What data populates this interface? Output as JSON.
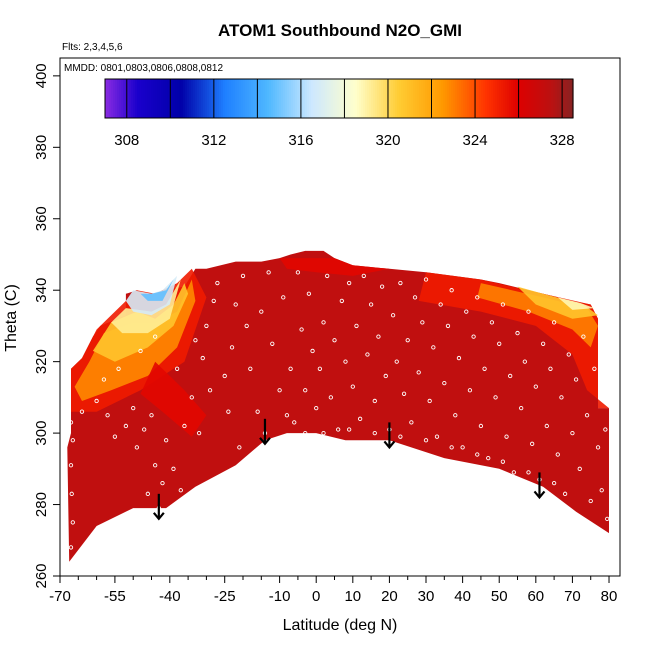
{
  "chart_data": {
    "type": "heatmap",
    "title": "ATOM1 Southbound N2O_GMI",
    "flights_note": "Flts: 2,3,4,5,6",
    "dates_note": "MMDD: 0801,0803,0806,0808,0812",
    "xlabel": "Latitude (deg N)",
    "ylabel": "Theta (C)",
    "xlim": [
      -70,
      83
    ],
    "ylim": [
      260,
      405
    ],
    "x_ticks": [
      -70,
      -55,
      -40,
      -25,
      -10,
      0,
      10,
      20,
      30,
      40,
      50,
      60,
      70,
      80
    ],
    "x_tick_labels": [
      "-70",
      "-55",
      "-40",
      "-25",
      "-10",
      "0",
      "10",
      "20",
      "30",
      "40",
      "50",
      "60",
      "70",
      "80"
    ],
    "x_minor_ticks": [
      -65,
      -60,
      -50,
      -45,
      -35,
      -30,
      -20,
      -15,
      -5,
      5,
      15,
      25,
      35,
      45,
      55,
      65,
      75
    ],
    "y_ticks": [
      260,
      280,
      300,
      320,
      340,
      360,
      380,
      400
    ],
    "y_tick_labels": [
      "260",
      "280",
      "300",
      "320",
      "340",
      "360",
      "380",
      "400"
    ],
    "colorbar": {
      "range": [
        307,
        328.5
      ],
      "ticks": [
        308,
        312,
        316,
        320,
        324,
        328
      ],
      "tick_labels": [
        "308",
        "312",
        "316",
        "320",
        "324",
        "328"
      ],
      "divisions": [
        308,
        310,
        312,
        314,
        316,
        318,
        320,
        322,
        324,
        326,
        328
      ],
      "stops": [
        {
          "value": 307.0,
          "color": "#8a2be2"
        },
        {
          "value": 308.5,
          "color": "#1a00cc"
        },
        {
          "value": 310.5,
          "color": "#0000a8"
        },
        {
          "value": 312.5,
          "color": "#1e7fff"
        },
        {
          "value": 314.5,
          "color": "#4fb8ff"
        },
        {
          "value": 316.5,
          "color": "#cde8ff"
        },
        {
          "value": 318.5,
          "color": "#ffffcc"
        },
        {
          "value": 320.5,
          "color": "#ffcc33"
        },
        {
          "value": 322.5,
          "color": "#ff9900"
        },
        {
          "value": 324.5,
          "color": "#ff3300"
        },
        {
          "value": 326.0,
          "color": "#dd0000"
        },
        {
          "value": 327.5,
          "color": "#bb1111"
        },
        {
          "value": 328.5,
          "color": "#882222"
        }
      ]
    },
    "background_value": 327.3,
    "field_boundary": [
      [
        -67.5,
        264
      ],
      [
        -60,
        274
      ],
      [
        -50,
        279
      ],
      [
        -41,
        279
      ],
      [
        -37,
        282
      ],
      [
        -33,
        285
      ],
      [
        -22,
        291
      ],
      [
        -14,
        298
      ],
      [
        -8,
        300
      ],
      [
        0,
        300
      ],
      [
        8,
        298
      ],
      [
        20,
        298
      ],
      [
        35,
        293
      ],
      [
        50,
        290
      ],
      [
        62,
        285
      ],
      [
        71,
        278
      ],
      [
        80,
        272
      ],
      [
        80,
        307
      ],
      [
        77,
        307
      ],
      [
        77,
        332
      ],
      [
        75,
        336
      ],
      [
        70,
        337
      ],
      [
        62,
        339
      ],
      [
        50,
        342
      ],
      [
        45,
        343
      ],
      [
        30,
        345
      ],
      [
        20,
        346
      ],
      [
        10,
        347
      ],
      [
        5,
        349
      ],
      [
        2,
        351
      ],
      [
        -3,
        351
      ],
      [
        -7,
        350
      ],
      [
        -10,
        349
      ],
      [
        -15,
        348
      ],
      [
        -22,
        348
      ],
      [
        -30,
        346
      ],
      [
        -33,
        346
      ],
      [
        -36,
        341
      ],
      [
        -42,
        340
      ],
      [
        -46,
        338
      ],
      [
        -49,
        340
      ],
      [
        -52,
        339
      ],
      [
        -52,
        333
      ],
      [
        -59,
        330
      ],
      [
        -61,
        327
      ],
      [
        -64,
        321
      ],
      [
        -67,
        318
      ],
      [
        -67,
        300
      ],
      [
        -68,
        296
      ]
    ],
    "regions": [
      {
        "value": 325.2,
        "polygon": [
          [
            -67,
            318
          ],
          [
            -64,
            321
          ],
          [
            -60,
            329
          ],
          [
            -55,
            334
          ],
          [
            -49,
            340
          ],
          [
            -44,
            339
          ],
          [
            -38,
            342
          ],
          [
            -34,
            346
          ],
          [
            -30,
            338
          ],
          [
            -36,
            320
          ],
          [
            -48,
            312
          ],
          [
            -60,
            306
          ],
          [
            -67,
            306
          ]
        ]
      },
      {
        "value": 322.8,
        "polygon": [
          [
            -66,
            313
          ],
          [
            -62,
            320
          ],
          [
            -58,
            328
          ],
          [
            -50,
            331
          ],
          [
            -44,
            331
          ],
          [
            -38,
            334
          ],
          [
            -34,
            343
          ],
          [
            -33,
            337
          ],
          [
            -38,
            324
          ],
          [
            -46,
            316
          ],
          [
            -56,
            312
          ],
          [
            -64,
            309
          ]
        ]
      },
      {
        "value": 320.8,
        "polygon": [
          [
            -61,
            323
          ],
          [
            -56,
            331
          ],
          [
            -49,
            334
          ],
          [
            -44,
            332
          ],
          [
            -39,
            336
          ],
          [
            -36,
            342
          ],
          [
            -35,
            339
          ],
          [
            -39,
            330
          ],
          [
            -46,
            324
          ],
          [
            -55,
            320
          ]
        ]
      },
      {
        "value": 319.2,
        "polygon": [
          [
            -56,
            331
          ],
          [
            -52,
            335
          ],
          [
            -45,
            334
          ],
          [
            -41,
            336
          ],
          [
            -37,
            343
          ],
          [
            -40,
            332
          ],
          [
            -46,
            328
          ],
          [
            -53,
            328
          ]
        ]
      },
      {
        "value": 316.8,
        "polygon": [
          [
            -52,
            337
          ],
          [
            -50,
            340
          ],
          [
            -45,
            339
          ],
          [
            -42,
            340
          ],
          [
            -38,
            344
          ],
          [
            -40,
            336
          ],
          [
            -45,
            333
          ],
          [
            -50,
            334
          ]
        ]
      },
      {
        "value": 314.8,
        "polygon": [
          [
            -48,
            339
          ],
          [
            -45,
            339
          ],
          [
            -41,
            340
          ],
          [
            -39,
            343
          ],
          [
            -42,
            337
          ],
          [
            -46,
            337
          ]
        ]
      },
      {
        "value": 325.2,
        "polygon": [
          [
            80,
            307
          ],
          [
            77,
            307
          ],
          [
            77,
            332
          ],
          [
            75,
            336
          ],
          [
            62,
            339
          ],
          [
            45,
            343
          ],
          [
            30,
            345
          ],
          [
            28,
            337
          ],
          [
            45,
            334
          ],
          [
            60,
            330
          ],
          [
            70,
            322
          ],
          [
            74,
            312
          ]
        ]
      },
      {
        "value": 323.0,
        "polygon": [
          [
            77,
            330
          ],
          [
            74,
            335
          ],
          [
            62,
            338
          ],
          [
            45,
            342
          ],
          [
            44,
            338
          ],
          [
            58,
            334
          ],
          [
            70,
            329
          ],
          [
            75,
            324
          ]
        ]
      },
      {
        "value": 320.8,
        "polygon": [
          [
            77,
            333
          ],
          [
            73,
            336
          ],
          [
            62,
            339
          ],
          [
            55,
            341
          ],
          [
            60,
            336
          ],
          [
            70,
            332
          ]
        ]
      },
      {
        "value": 318.8,
        "polygon": [
          [
            76,
            335
          ],
          [
            72,
            336.5
          ],
          [
            66,
            338
          ],
          [
            70,
            334.5
          ]
        ]
      },
      {
        "value": 325.8,
        "polygon": [
          [
            -44,
            320
          ],
          [
            -36,
            312
          ],
          [
            -30,
            305
          ],
          [
            -34,
            299
          ],
          [
            -42,
            306
          ],
          [
            -48,
            311
          ]
        ]
      },
      {
        "value": 325.8,
        "polygon": [
          [
            -10,
            349
          ],
          [
            5,
            349
          ],
          [
            10,
            347
          ],
          [
            20,
            346
          ],
          [
            10,
            344
          ],
          [
            0,
            345
          ],
          [
            -8,
            346
          ]
        ]
      }
    ],
    "observations": [
      [
        -67,
        268
      ],
      [
        -66.5,
        275
      ],
      [
        -66.8,
        283
      ],
      [
        -67,
        291
      ],
      [
        -66.5,
        298
      ],
      [
        -67,
        303
      ],
      [
        -64,
        306
      ],
      [
        -60,
        309
      ],
      [
        -57,
        305
      ],
      [
        -55,
        299
      ],
      [
        -52,
        302
      ],
      [
        -50,
        307
      ],
      [
        -49,
        296
      ],
      [
        -47,
        301
      ],
      [
        -45,
        305
      ],
      [
        -46,
        283
      ],
      [
        -44,
        291
      ],
      [
        -43,
        279
      ],
      [
        -42,
        286
      ],
      [
        -41,
        298
      ],
      [
        -39,
        290
      ],
      [
        -37,
        284
      ],
      [
        -36,
        302
      ],
      [
        -34,
        310
      ],
      [
        -32,
        300
      ],
      [
        -31,
        321
      ],
      [
        -30,
        330
      ],
      [
        -28,
        337
      ],
      [
        -27,
        342
      ],
      [
        -25,
        316
      ],
      [
        -23,
        324
      ],
      [
        -22,
        336
      ],
      [
        -20,
        344
      ],
      [
        -19,
        330
      ],
      [
        -18,
        318
      ],
      [
        -16,
        306
      ],
      [
        -15,
        334
      ],
      [
        -13,
        345
      ],
      [
        -12,
        325
      ],
      [
        -10,
        312
      ],
      [
        -9,
        338
      ],
      [
        -7,
        318
      ],
      [
        -6,
        303
      ],
      [
        -5,
        345
      ],
      [
        -4,
        329
      ],
      [
        -3,
        312
      ],
      [
        -2,
        339
      ],
      [
        -1,
        323
      ],
      [
        0,
        307
      ],
      [
        1,
        318
      ],
      [
        2,
        331
      ],
      [
        3,
        344
      ],
      [
        4,
        310
      ],
      [
        5,
        326
      ],
      [
        6,
        301
      ],
      [
        7,
        337
      ],
      [
        8,
        320
      ],
      [
        9,
        342
      ],
      [
        10,
        313
      ],
      [
        11,
        330
      ],
      [
        12,
        304
      ],
      [
        13,
        344
      ],
      [
        14,
        322
      ],
      [
        15,
        336
      ],
      [
        16,
        309
      ],
      [
        17,
        327
      ],
      [
        18,
        341
      ],
      [
        19,
        316
      ],
      [
        20,
        301
      ],
      [
        21,
        333
      ],
      [
        22,
        320
      ],
      [
        23,
        342
      ],
      [
        24,
        311
      ],
      [
        25,
        326
      ],
      [
        26,
        303
      ],
      [
        27,
        338
      ],
      [
        28,
        317
      ],
      [
        29,
        331
      ],
      [
        30,
        343
      ],
      [
        31,
        309
      ],
      [
        32,
        324
      ],
      [
        33,
        299
      ],
      [
        34,
        336
      ],
      [
        35,
        314
      ],
      [
        36,
        330
      ],
      [
        37,
        340
      ],
      [
        38,
        305
      ],
      [
        39,
        321
      ],
      [
        40,
        296
      ],
      [
        41,
        334
      ],
      [
        42,
        312
      ],
      [
        43,
        327
      ],
      [
        44,
        338
      ],
      [
        45,
        302
      ],
      [
        46,
        318
      ],
      [
        47,
        293
      ],
      [
        48,
        331
      ],
      [
        49,
        310
      ],
      [
        50,
        325
      ],
      [
        51,
        336
      ],
      [
        52,
        299
      ],
      [
        53,
        316
      ],
      [
        54,
        289
      ],
      [
        55,
        328
      ],
      [
        56,
        307
      ],
      [
        57,
        320
      ],
      [
        58,
        334
      ],
      [
        59,
        297
      ],
      [
        60,
        313
      ],
      [
        61,
        287
      ],
      [
        62,
        325
      ],
      [
        63,
        302
      ],
      [
        64,
        318
      ],
      [
        65,
        331
      ],
      [
        66,
        294
      ],
      [
        67,
        310
      ],
      [
        68,
        283
      ],
      [
        69,
        322
      ],
      [
        70,
        300
      ],
      [
        71,
        315
      ],
      [
        72,
        290
      ],
      [
        73,
        327
      ],
      [
        74,
        305
      ],
      [
        75,
        281
      ],
      [
        76,
        318
      ],
      [
        77,
        296
      ],
      [
        78,
        284
      ],
      [
        79,
        301
      ],
      [
        79.5,
        276
      ],
      [
        -58,
        315
      ],
      [
        -54,
        318
      ],
      [
        -48,
        323
      ],
      [
        -44,
        327
      ],
      [
        -38,
        318
      ],
      [
        -33,
        326
      ],
      [
        -29,
        312
      ],
      [
        -24,
        306
      ],
      [
        -21,
        296
      ],
      [
        -14,
        300
      ],
      [
        -8,
        305
      ],
      [
        -3,
        300
      ],
      [
        2,
        300
      ],
      [
        9,
        301
      ],
      [
        16,
        300
      ],
      [
        23,
        299
      ],
      [
        30,
        298
      ],
      [
        37,
        296
      ],
      [
        44,
        294
      ],
      [
        51,
        292
      ],
      [
        58,
        289
      ],
      [
        65,
        286
      ]
    ],
    "arrows": [
      {
        "x": -43,
        "y_top": 283,
        "y_bottom": 276
      },
      {
        "x": -14,
        "y_top": 304,
        "y_bottom": 297
      },
      {
        "x": 20,
        "y_top": 303,
        "y_bottom": 296
      },
      {
        "x": 61,
        "y_top": 289,
        "y_bottom": 282
      }
    ]
  }
}
